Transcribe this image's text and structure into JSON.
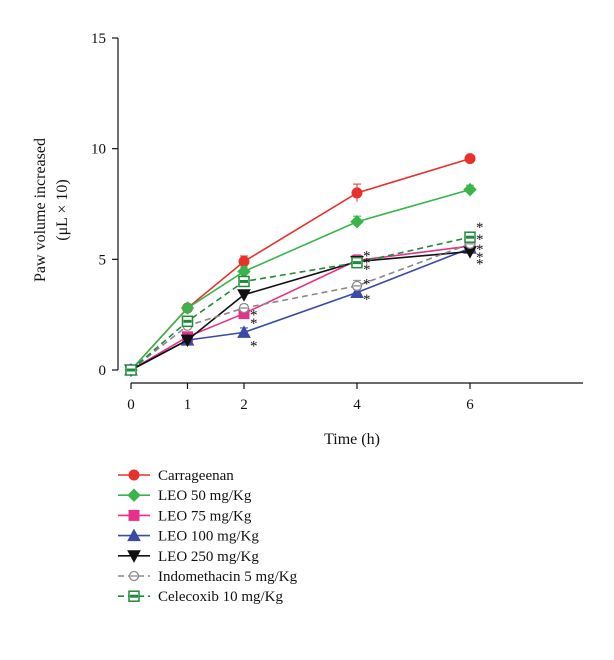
{
  "chart_data": {
    "type": "line",
    "title": "",
    "xlabel": "Time (h)",
    "ylabel": "Paw volume increased",
    "ylabel_unit": "(μL × 10)",
    "x": [
      0,
      1,
      2,
      4,
      6
    ],
    "xticks": [
      "0",
      "1",
      "2",
      "4",
      "6"
    ],
    "yticks": [
      "0",
      "5",
      "10",
      "15"
    ],
    "xlim": [
      0,
      8
    ],
    "ylim": [
      0,
      15
    ],
    "grid": false,
    "legend_position": "bottom-left",
    "significance_marker": "*",
    "series": [
      {
        "name": "Carrageenan",
        "values": [
          0,
          2.8,
          4.9,
          8.0,
          9.55
        ],
        "errors": [
          0,
          0.15,
          0.25,
          0.4,
          0.1
        ],
        "color": "#e8312a",
        "dash": false,
        "marker": "circle-filled"
      },
      {
        "name": "LEO 50 mg/Kg",
        "values": [
          0,
          2.8,
          4.45,
          6.7,
          8.15
        ],
        "errors": [
          0,
          0.1,
          0.2,
          0.25,
          0.2
        ],
        "color": "#3ab54a",
        "dash": false,
        "marker": "diamond-filled"
      },
      {
        "name": "LEO 75 mg/Kg",
        "values": [
          0,
          1.5,
          2.55,
          4.95,
          5.6
        ],
        "errors": [
          0,
          0.1,
          0.1,
          0.25,
          0.15
        ],
        "color": "#e8308a",
        "dash": false,
        "marker": "square-filled"
      },
      {
        "name": "LEO 100 mg/Kg",
        "values": [
          0,
          1.35,
          1.7,
          3.5,
          5.5
        ],
        "errors": [
          0,
          0.1,
          0.2,
          0.15,
          0.15
        ],
        "color": "#3a4aa8",
        "dash": false,
        "marker": "triangle-up-filled"
      },
      {
        "name": "LEO 250 mg/Kg",
        "values": [
          0,
          1.35,
          3.4,
          4.9,
          5.35
        ],
        "errors": [
          0,
          0.1,
          0.15,
          0.2,
          0.15
        ],
        "color": "#111111",
        "dash": false,
        "marker": "triangle-down-filled"
      },
      {
        "name": "Indomethacin 5 mg/Kg",
        "values": [
          0,
          2.0,
          2.8,
          3.8,
          5.7
        ],
        "errors": [
          0,
          0.1,
          0.15,
          0.25,
          0.15
        ],
        "color": "#8a8a8a",
        "dash": true,
        "marker": "circle-open-bar"
      },
      {
        "name": "Celecoxib 10 mg/Kg",
        "values": [
          0,
          2.2,
          4.0,
          4.85,
          6.0
        ],
        "errors": [
          0,
          0.15,
          0.15,
          0.15,
          0.2
        ],
        "color": "#1f8a3a",
        "dash": true,
        "marker": "square-open-bar"
      }
    ],
    "significance": [
      {
        "x": 2,
        "stars": [
          2.65,
          2.25,
          1.25
        ]
      },
      {
        "x": 4,
        "stars": [
          5.3,
          5.0,
          4.7,
          4.05,
          3.35
        ]
      },
      {
        "x": 6,
        "stars": [
          6.6,
          6.05,
          5.6,
          5.25,
          4.95
        ]
      }
    ]
  }
}
